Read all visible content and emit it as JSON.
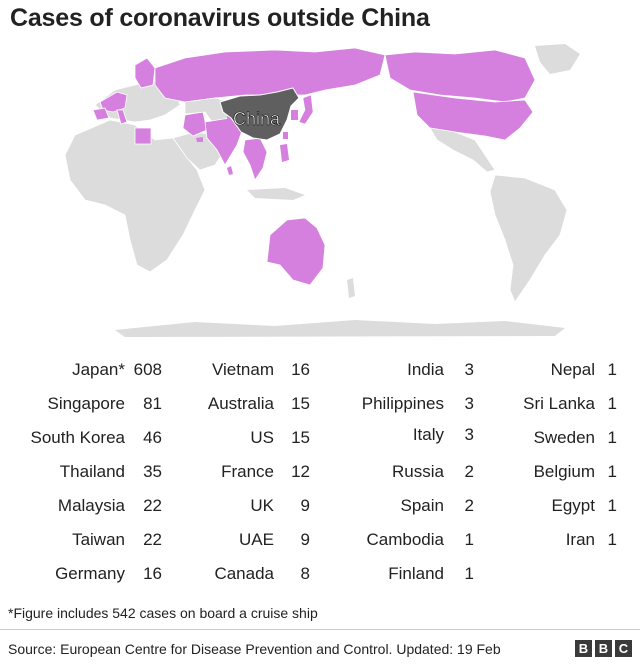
{
  "title": "Cases of coronavirus outside China",
  "map": {
    "china_label": "China",
    "colors": {
      "affected": "#d57fdf",
      "china": "#5f5f5f",
      "land": "#dcdcdc",
      "border": "#ffffff"
    }
  },
  "chart_data": {
    "type": "table",
    "title": "Cases of coronavirus outside China",
    "columns": [
      [
        {
          "country": "Japan*",
          "cases": 608
        },
        {
          "country": "Singapore",
          "cases": 81
        },
        {
          "country": "South Korea",
          "cases": 46
        },
        {
          "country": "Thailand",
          "cases": 35
        },
        {
          "country": "Malaysia",
          "cases": 22
        },
        {
          "country": "Taiwan",
          "cases": 22
        },
        {
          "country": "Germany",
          "cases": 16
        }
      ],
      [
        {
          "country": "Vietnam",
          "cases": 16
        },
        {
          "country": "Australia",
          "cases": 15
        },
        {
          "country": "US",
          "cases": 15
        },
        {
          "country": "France",
          "cases": 12
        },
        {
          "country": "UK",
          "cases": 9
        },
        {
          "country": "UAE",
          "cases": 9
        },
        {
          "country": "Canada",
          "cases": 8
        }
      ],
      [
        {
          "country": "India",
          "cases": 3
        },
        {
          "country": "Philippines",
          "cases": 3
        },
        {
          "country": "Italy",
          "cases": 3
        },
        {
          "country": "Russia",
          "cases": 2
        },
        {
          "country": "Spain",
          "cases": 2
        },
        {
          "country": "Cambodia",
          "cases": 1
        },
        {
          "country": "Finland",
          "cases": 1
        }
      ],
      [
        {
          "country": "Nepal",
          "cases": 1
        },
        {
          "country": "Sri Lanka",
          "cases": 1
        },
        {
          "country": "Sweden",
          "cases": 1
        },
        {
          "country": "Belgium",
          "cases": 1
        },
        {
          "country": "Egypt",
          "cases": 1
        },
        {
          "country": "Iran",
          "cases": 1
        }
      ]
    ]
  },
  "footnote": "*Figure includes 542 cases on board a cruise ship",
  "source": "Source: European Centre for Disease Prevention and Control. Updated: 19 Feb",
  "brand": [
    "B",
    "B",
    "C"
  ]
}
